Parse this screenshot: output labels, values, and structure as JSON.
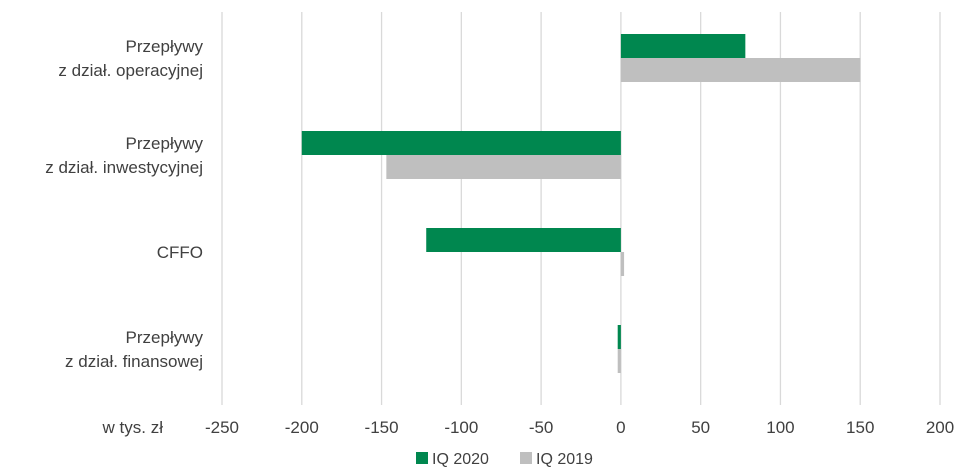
{
  "chart_data": {
    "type": "bar",
    "orientation": "horizontal",
    "unit_label": "w tys. zł",
    "categories": [
      [
        "Przepływy",
        "z dział. operacyjnej"
      ],
      [
        "Przepływy",
        "z dział. inwestycyjnej"
      ],
      [
        "CFFO"
      ],
      [
        "Przepływy",
        "z dział. finansowej"
      ]
    ],
    "series": [
      {
        "name": "IQ 2020",
        "color": "#00874f",
        "values": [
          78,
          -200,
          -122,
          -2
        ]
      },
      {
        "name": "IQ 2019",
        "color": "#bfbfbf",
        "values": [
          150,
          -147,
          2,
          -2
        ]
      }
    ],
    "xlim": [
      -250,
      200
    ],
    "ticks": [
      -250,
      -200,
      -150,
      -100,
      -50,
      0,
      50,
      100,
      150,
      200
    ],
    "grid": true,
    "legend_position": "bottom"
  }
}
